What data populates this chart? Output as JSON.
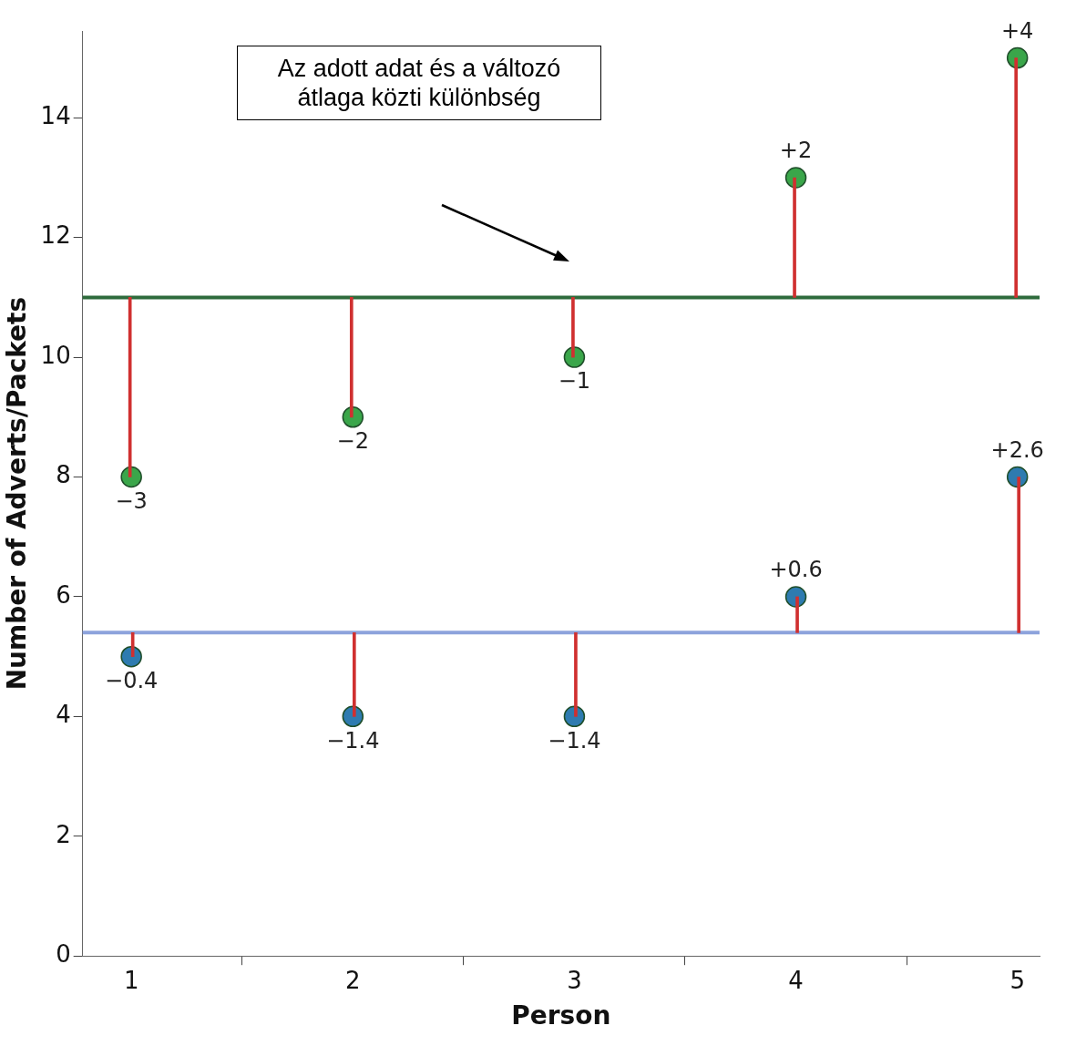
{
  "chart_data": {
    "type": "scatter",
    "xlabel": "Person",
    "ylabel": "Number of Adverts/Packets",
    "x": [
      1,
      2,
      3,
      4,
      5
    ],
    "series": [
      {
        "type": "bar",
        "color": "#d03030",
        "base": [
          11,
          11,
          11,
          11,
          11
        ],
        "values": [
          -3,
          -2,
          -1,
          2,
          4
        ],
        "value_labels": [
          "−3",
          "−2",
          "−1",
          "+2",
          "+4"
        ]
      },
      {
        "type": "bar",
        "color": "#d03030",
        "base": [
          5.4,
          5.4,
          5.4,
          5.4,
          5.4
        ],
        "values": [
          -0.4,
          -1.4,
          -1.4,
          0.6,
          2.6
        ],
        "value_labels": [
          "−0.4",
          "−1.4",
          "−1.4",
          "+0.6",
          "+2.6"
        ]
      },
      {
        "color": "#3aa64a",
        "values": [
          8,
          9,
          10,
          13,
          15
        ]
      },
      {
        "color": "#2e7bb0",
        "values": [
          5,
          4,
          4,
          6,
          8
        ]
      }
    ],
    "ref_lines": [
      {
        "axis": "y",
        "value": 11,
        "color": "#2e6b3c"
      },
      {
        "axis": "y",
        "value": 5.4,
        "color": "#8da3dc"
      }
    ],
    "annotations": [
      "Az adott adat és a változó átlaga közti különbség"
    ],
    "xlim": [
      0.78,
      5.1
    ],
    "ylim": [
      0,
      15.45
    ],
    "xticks": [
      1,
      2,
      3,
      4,
      5
    ],
    "yticks": [
      0,
      2,
      4,
      6,
      8,
      10,
      12,
      14
    ],
    "grid": false,
    "legend": false,
    "marker": "circle"
  }
}
